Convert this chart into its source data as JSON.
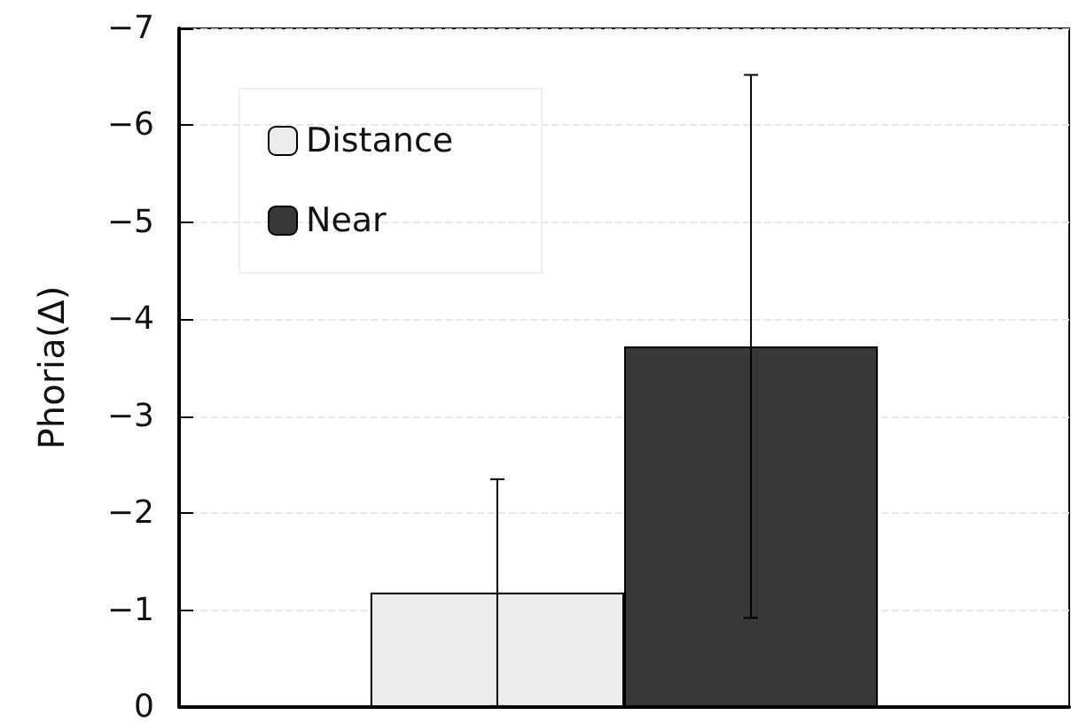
{
  "chart_data": {
    "type": "bar",
    "ylabel": "Phoria(Δ)",
    "categories": [
      null
    ],
    "series": [
      {
        "name": "Distance",
        "color": "#ececec",
        "values": [
          -1.18
        ],
        "errors": [
          1.17
        ]
      },
      {
        "name": "Near",
        "color": "#383838",
        "values": [
          -3.72
        ],
        "errors": [
          2.8
        ]
      }
    ],
    "ylim": [
      0,
      -7
    ],
    "yticks": [
      {
        "value": 0,
        "label": "0"
      },
      {
        "value": -1,
        "label": "−1"
      },
      {
        "value": -2,
        "label": "−2"
      },
      {
        "value": -3,
        "label": "−3"
      },
      {
        "value": -4,
        "label": "−4"
      },
      {
        "value": -5,
        "label": "−5"
      },
      {
        "value": -6,
        "label": "−6"
      },
      {
        "value": -7,
        "label": "−7"
      }
    ],
    "grid": "y",
    "legend": "top left"
  }
}
